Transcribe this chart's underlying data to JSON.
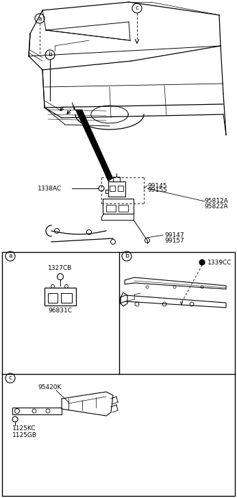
{
  "bg_color": "#ffffff",
  "line_color": "#000000",
  "fig_width": 3.46,
  "fig_height": 7.27,
  "dpi": 100,
  "labels": {
    "part_1338AC": "1338AC",
    "part_99145": "99145",
    "part_99155": "99155",
    "part_99147": "99147",
    "part_99157": "99157",
    "part_95812A": "95812A",
    "part_95822A": "95822A",
    "part_1327CB": "1327CB",
    "part_96831C": "96831C",
    "part_1339CC": "1339CC",
    "part_95420K": "95420K",
    "part_1125KC": "1125KC",
    "part_1125GB": "1125GB"
  }
}
